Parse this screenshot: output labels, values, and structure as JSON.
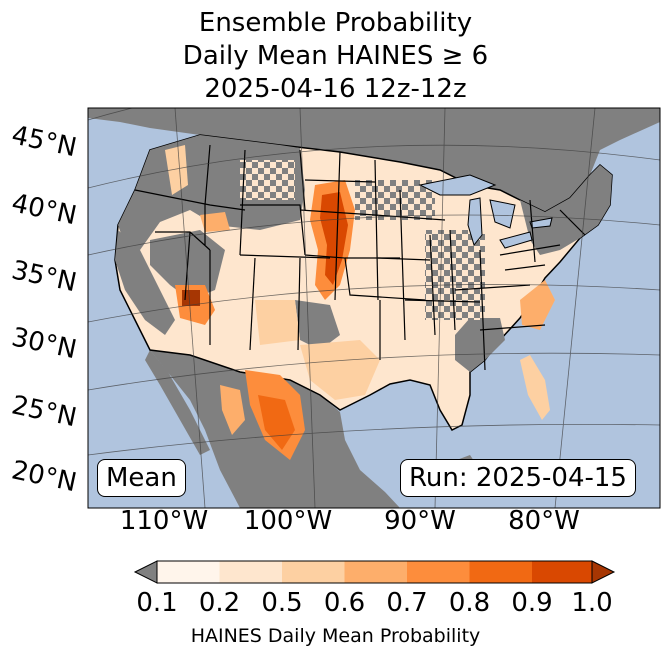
{
  "title": {
    "line1": "Ensemble Probability",
    "line2": "Daily Mean HAINES ≥ 6",
    "line3": "2025-04-16 12z-12z"
  },
  "map": {
    "lat_labels": [
      "45°N",
      "40°N",
      "35°N",
      "30°N",
      "25°N",
      "20°N"
    ],
    "lon_labels": [
      "110°W",
      "100°W",
      "90°W",
      "80°W"
    ],
    "stat_label": "Mean",
    "run_label": "Run: 2025-04-15",
    "colors": {
      "ocean": "#b0c4de",
      "no_data_land": "#808080",
      "grid": "#3a3a3a"
    }
  },
  "colorbar": {
    "ticks": [
      "0.1",
      "0.2",
      "0.5",
      "0.6",
      "0.7",
      "0.8",
      "0.9",
      "1.0"
    ],
    "colors": [
      "#fff5eb",
      "#fee6ce",
      "#fdd0a2",
      "#fdae6b",
      "#fd8d3c",
      "#f16913",
      "#d94801",
      "#a63603"
    ],
    "under_color": "#808080",
    "label": "HAINES Daily Mean Probability"
  }
}
